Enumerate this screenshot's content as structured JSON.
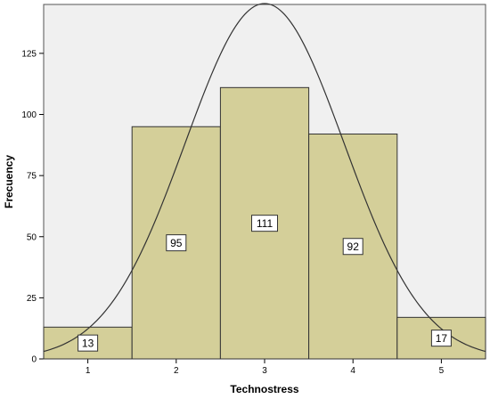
{
  "chart_data": {
    "type": "bar",
    "categories": [
      "1",
      "2",
      "3",
      "4",
      "5"
    ],
    "values": [
      13,
      95,
      111,
      92,
      17
    ],
    "data_labels": [
      "13",
      "95",
      "111",
      "92",
      "17"
    ],
    "xlabel": "Technostress",
    "ylabel": "Frecuency",
    "xlim": [
      0.5,
      5.5
    ],
    "ylim": [
      0,
      145
    ],
    "yticks": [
      0,
      25,
      50,
      75,
      100,
      125
    ],
    "ytick_labels": [
      "0",
      "25",
      "50",
      "75",
      "100",
      "125"
    ],
    "grid": false,
    "normal_curve": {
      "mean": 3.0,
      "sd": 0.9,
      "n": 328
    },
    "colors": {
      "plot_background": "#f0f0f0",
      "bar_fill": "#d4cf99",
      "bar_stroke": "#333333",
      "curve": "#333333"
    }
  }
}
